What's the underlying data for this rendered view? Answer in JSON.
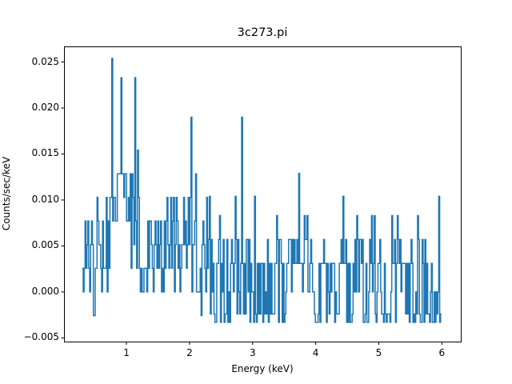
{
  "chart_data": {
    "type": "line",
    "style": "steps",
    "title": "3c273.pi",
    "xlabel": "Energy (keV)",
    "ylabel": "Counts/sec/keV",
    "xlim": [
      0.01,
      6.3
    ],
    "ylim": [
      -0.0054,
      0.0267
    ],
    "xticks": [
      1,
      2,
      3,
      4,
      5,
      6
    ],
    "xtick_labels": [
      "1",
      "2",
      "3",
      "4",
      "5",
      "6"
    ],
    "yticks": [
      -0.005,
      0.0,
      0.005,
      0.01,
      0.015,
      0.02,
      0.025
    ],
    "ytick_labels": [
      "−0.005",
      "0.000",
      "0.005",
      "0.010",
      "0.015",
      "0.020",
      "0.025"
    ],
    "grid": false,
    "legend": null,
    "series": [
      {
        "name": "3c273.pi",
        "color": "#1f77b4",
        "x_start": 0.3,
        "x_end": 6.0,
        "bin_width_keV": 0.0146,
        "quantum": 0.00257,
        "peak_values": [
          {
            "x": 0.76,
            "y": 0.0254
          },
          {
            "x": 0.91,
            "y": 0.0233
          },
          {
            "x": 1.13,
            "y": 0.0233
          },
          {
            "x": 2.02,
            "y": 0.019
          },
          {
            "x": 2.82,
            "y": 0.019
          },
          {
            "x": 3.73,
            "y": 0.0129
          }
        ],
        "baseline_range": [
          -0.0033,
          0.0057
        ]
      }
    ]
  }
}
